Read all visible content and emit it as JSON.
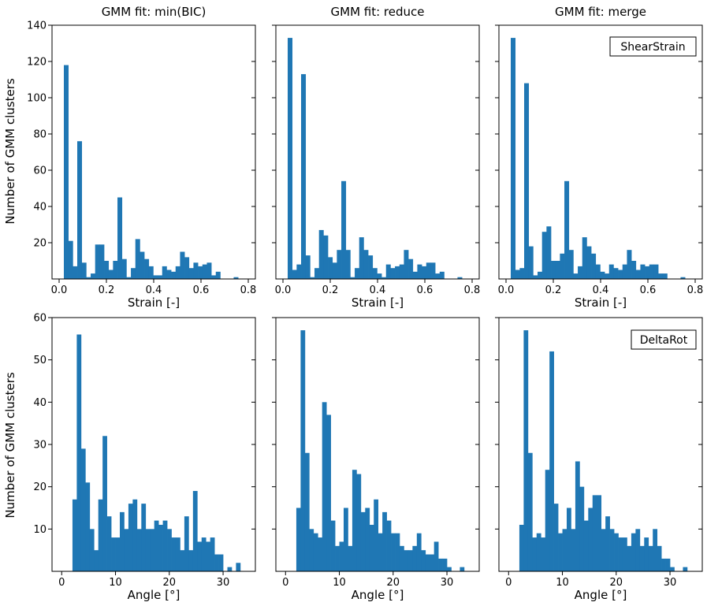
{
  "colors": {
    "bar": "#1f77b4",
    "axis": "#000000",
    "background": "#ffffff"
  },
  "shared_ylabel": "Number of GMM clusters",
  "chart_data": [
    {
      "type": "bar",
      "title": "GMM fit: min(BIC)",
      "xlabel": "Strain [-]",
      "ylabel": "Number of GMM clusters",
      "xlim": [
        -0.03,
        0.83
      ],
      "ylim": [
        0,
        140
      ],
      "xticks": [
        0.0,
        0.2,
        0.4,
        0.6,
        0.8
      ],
      "xtick_labels": [
        "0.0",
        "0.2",
        "0.4",
        "0.6",
        "0.8"
      ],
      "yticks": [
        20,
        40,
        60,
        80,
        100,
        120,
        140
      ],
      "ytick_labels": [
        "20",
        "40",
        "60",
        "80",
        "100",
        "120",
        "140"
      ],
      "bin_start": 0.02,
      "bin_width": 0.0189,
      "values": [
        118,
        21,
        7,
        76,
        9,
        1,
        3,
        19,
        19,
        10,
        5,
        10,
        45,
        11,
        1,
        6,
        22,
        15,
        11,
        7,
        2,
        2,
        7,
        5,
        4,
        7,
        15,
        12,
        6,
        9,
        7,
        8,
        9,
        2,
        4,
        0,
        0,
        0,
        1
      ]
    },
    {
      "type": "bar",
      "title": "GMM fit: reduce",
      "xlabel": "Strain [-]",
      "ylabel": "",
      "xlim": [
        -0.03,
        0.83
      ],
      "ylim": [
        0,
        140
      ],
      "xticks": [
        0.0,
        0.2,
        0.4,
        0.6,
        0.8
      ],
      "xtick_labels": [
        "0.0",
        "0.2",
        "0.4",
        "0.6",
        "0.8"
      ],
      "yticks": [
        20,
        40,
        60,
        80,
        100,
        120,
        140
      ],
      "ytick_labels": [],
      "bin_start": 0.02,
      "bin_width": 0.0189,
      "values": [
        133,
        5,
        8,
        113,
        13,
        1,
        6,
        27,
        24,
        12,
        9,
        16,
        54,
        16,
        1,
        6,
        23,
        16,
        13,
        6,
        3,
        1,
        8,
        6,
        7,
        8,
        16,
        11,
        4,
        8,
        7,
        9,
        9,
        3,
        4,
        0,
        0,
        0,
        1
      ]
    },
    {
      "type": "bar",
      "title": "GMM fit: merge",
      "xlabel": "Strain [-]",
      "ylabel": "",
      "xlim": [
        -0.03,
        0.83
      ],
      "ylim": [
        0,
        140
      ],
      "xticks": [
        0.0,
        0.2,
        0.4,
        0.6,
        0.8
      ],
      "xtick_labels": [
        "0.0",
        "0.2",
        "0.4",
        "0.6",
        "0.8"
      ],
      "yticks": [
        20,
        40,
        60,
        80,
        100,
        120,
        140
      ],
      "ytick_labels": [],
      "bin_start": 0.02,
      "bin_width": 0.0189,
      "values": [
        133,
        5,
        6,
        108,
        18,
        2,
        4,
        26,
        29,
        10,
        10,
        14,
        54,
        16,
        3,
        7,
        23,
        18,
        14,
        8,
        4,
        3,
        8,
        6,
        5,
        8,
        16,
        10,
        5,
        8,
        7,
        8,
        8,
        3,
        3,
        0,
        0,
        0,
        1
      ],
      "annotation": "ShearStrain"
    },
    {
      "type": "bar",
      "title": "",
      "xlabel": "Angle [°]",
      "ylabel": "Number of GMM clusters",
      "xlim": [
        -1.8,
        36.0
      ],
      "ylim": [
        0,
        60
      ],
      "xticks": [
        0,
        10,
        20,
        30
      ],
      "xtick_labels": [
        "0",
        "10",
        "20",
        "30"
      ],
      "yticks": [
        10,
        20,
        30,
        40,
        50,
        60
      ],
      "ytick_labels": [
        "10",
        "20",
        "30",
        "40",
        "50",
        "60"
      ],
      "bin_start": 2.0,
      "bin_width": 0.8,
      "values": [
        17,
        56,
        29,
        21,
        10,
        5,
        17,
        32,
        13,
        8,
        8,
        14,
        10,
        16,
        17,
        10,
        16,
        10,
        10,
        12,
        11,
        12,
        10,
        8,
        8,
        5,
        13,
        5,
        19,
        7,
        8,
        7,
        8,
        4,
        4,
        0,
        1,
        0,
        2
      ]
    },
    {
      "type": "bar",
      "title": "",
      "xlabel": "Angle [°]",
      "ylabel": "",
      "xlim": [
        -1.8,
        36.0
      ],
      "ylim": [
        0,
        60
      ],
      "xticks": [
        0,
        10,
        20,
        30
      ],
      "xtick_labels": [
        "0",
        "10",
        "20",
        "30"
      ],
      "yticks": [
        10,
        20,
        30,
        40,
        50,
        60
      ],
      "ytick_labels": [],
      "bin_start": 2.0,
      "bin_width": 0.8,
      "values": [
        15,
        57,
        28,
        10,
        9,
        8,
        40,
        37,
        12,
        6,
        7,
        15,
        6,
        24,
        23,
        14,
        15,
        11,
        17,
        9,
        14,
        12,
        9,
        9,
        6,
        5,
        5,
        6,
        9,
        5,
        4,
        4,
        7,
        3,
        3,
        1,
        0,
        0,
        1
      ]
    },
    {
      "type": "bar",
      "title": "",
      "xlabel": "Angle [°]",
      "ylabel": "",
      "xlim": [
        -1.8,
        36.0
      ],
      "ylim": [
        0,
        60
      ],
      "xticks": [
        0,
        10,
        20,
        30
      ],
      "xtick_labels": [
        "0",
        "10",
        "20",
        "30"
      ],
      "yticks": [
        10,
        20,
        30,
        40,
        50,
        60
      ],
      "ytick_labels": [],
      "bin_start": 2.0,
      "bin_width": 0.8,
      "values": [
        11,
        57,
        28,
        8,
        9,
        8,
        24,
        52,
        16,
        9,
        10,
        15,
        10,
        26,
        20,
        12,
        15,
        18,
        18,
        10,
        13,
        10,
        9,
        8,
        8,
        6,
        9,
        10,
        6,
        8,
        6,
        10,
        6,
        3,
        3,
        1,
        0,
        0,
        1
      ],
      "annotation": "DeltaRot"
    }
  ]
}
